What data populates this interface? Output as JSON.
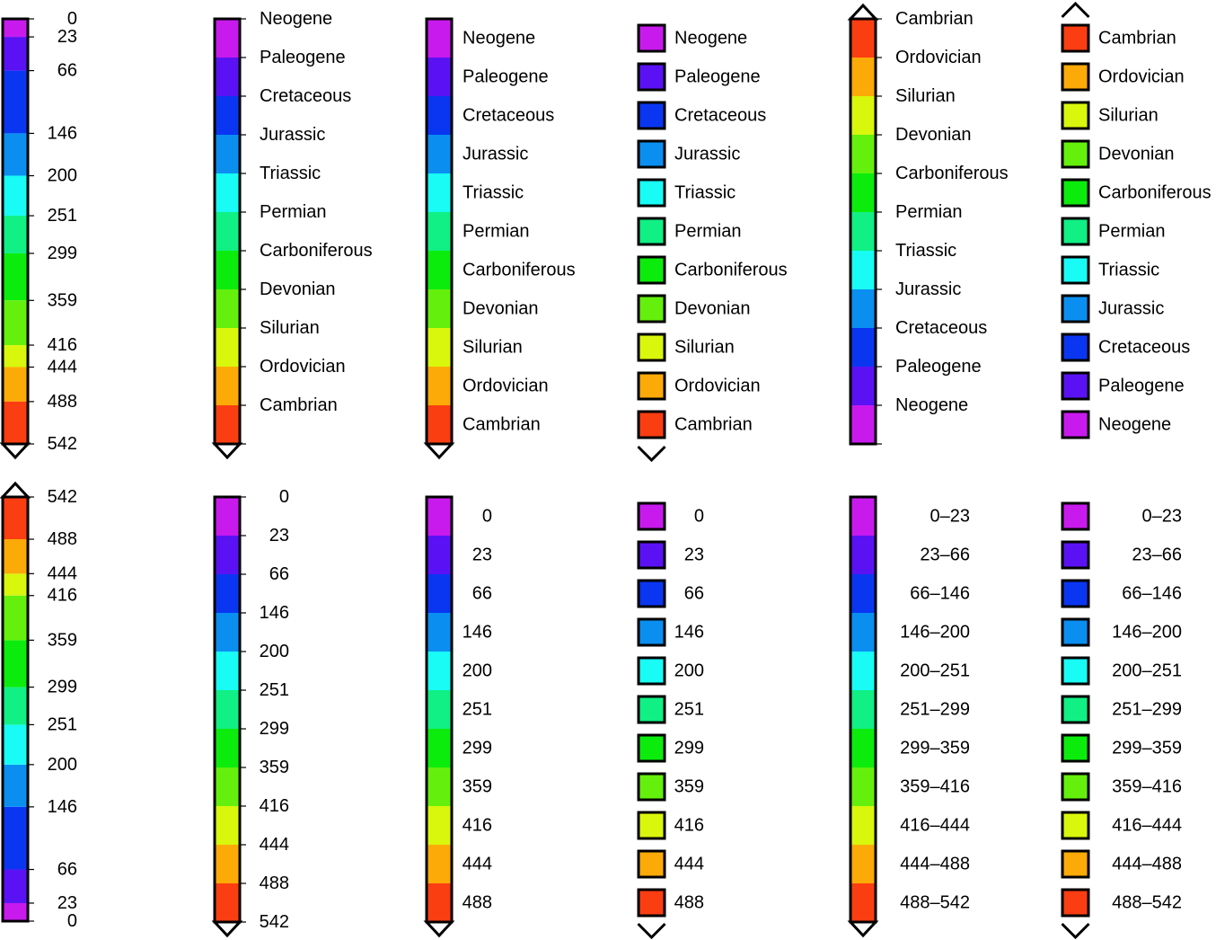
{
  "colors": [
    "#c91aee",
    "#5a12f5",
    "#0a36f2",
    "#0a8ff1",
    "#19fbf5",
    "#10f084",
    "#0cec0c",
    "#64f00c",
    "#d9f60d",
    "#fbaa07",
    "#fb3d12"
  ],
  "periods": [
    "Neogene",
    "Paleogene",
    "Cretaceous",
    "Jurassic",
    "Triassic",
    "Permian",
    "Carboniferous",
    "Devonian",
    "Silurian",
    "Ordovician",
    "Cambrian"
  ],
  "boundaries": [
    "0",
    "23",
    "66",
    "146",
    "200",
    "251",
    "299",
    "359",
    "416",
    "444",
    "488",
    "542"
  ],
  "ranges": [
    "0–23",
    "23–66",
    "66–146",
    "146–200",
    "200–251",
    "251–299",
    "299–359",
    "359–416",
    "416–444",
    "444–488",
    "488–542"
  ],
  "boundary_values": [
    0,
    23,
    66,
    146,
    200,
    251,
    299,
    359,
    416,
    444,
    488,
    542
  ]
}
